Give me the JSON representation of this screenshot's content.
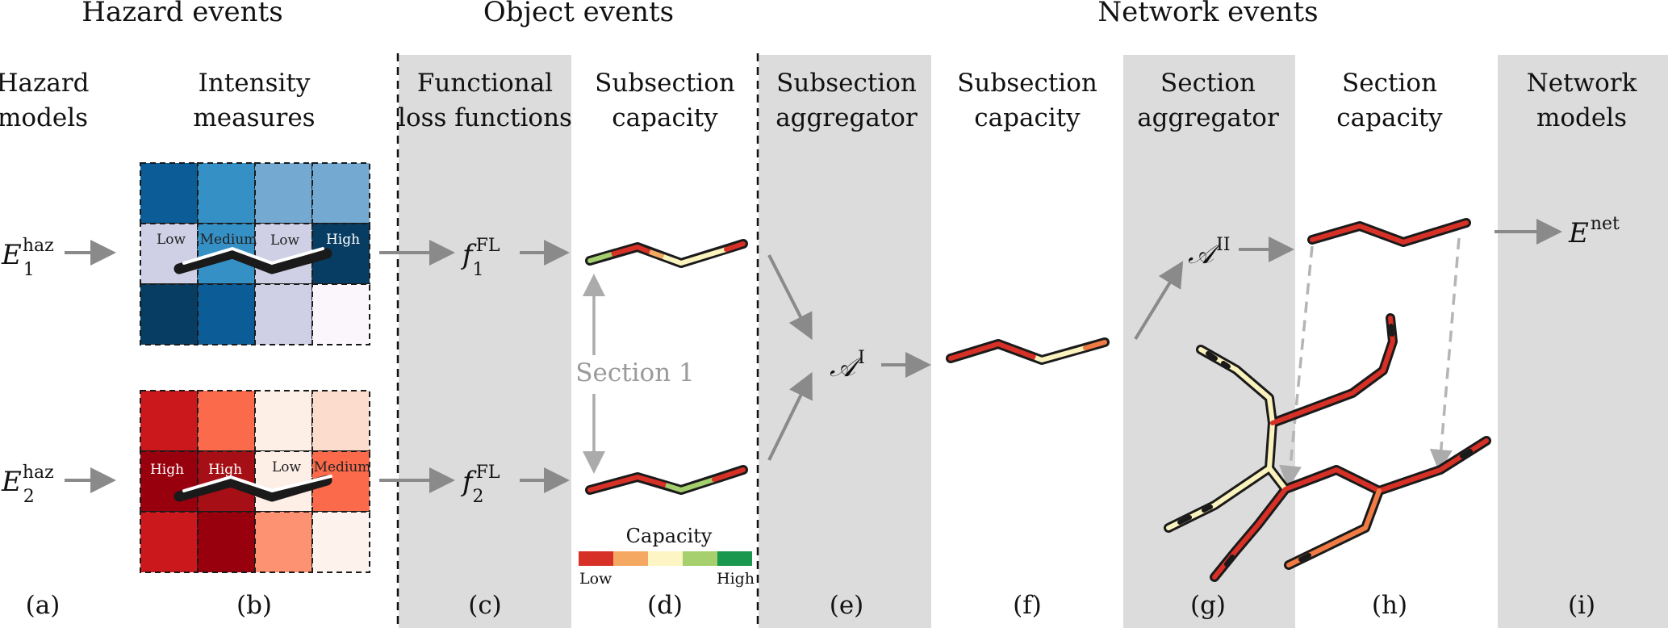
{
  "bands": {
    "hazard": "Hazard events",
    "object": "Object events",
    "network": "Network events"
  },
  "columns": {
    "a": [
      "Hazard",
      "models"
    ],
    "b": [
      "Intensity",
      "measures"
    ],
    "c": [
      "Functional",
      "loss functions"
    ],
    "d": [
      "Subsection",
      "capacity"
    ],
    "e": [
      "Subsection",
      "aggregator"
    ],
    "f": [
      "Subsection",
      "capacity"
    ],
    "g": [
      "Section",
      "aggregator"
    ],
    "h": [
      "Section",
      "capacity"
    ],
    "i": [
      "Network",
      "models"
    ]
  },
  "panels": [
    "(a)",
    "(b)",
    "(c)",
    "(d)",
    "(e)",
    "(f)",
    "(g)",
    "(h)",
    "(i)"
  ],
  "math": {
    "E": "E",
    "haz": "haz",
    "sub1": "1",
    "sub2": "2",
    "f": "f",
    "FL": "FL",
    "A": "𝒜",
    "I": "I",
    "II": "II",
    "net": "net"
  },
  "grid1_labels": [
    "Low",
    "Medium",
    "Low",
    "High"
  ],
  "grid2_labels": [
    "High",
    "High",
    "Low",
    "Medium"
  ],
  "section_label": "Section 1",
  "capacity_legend": {
    "title": "Capacity",
    "low": "Low",
    "high": "High",
    "colors": [
      "#d73027",
      "#f4a862",
      "#fdf5c3",
      "#a6cf6d",
      "#1a9850"
    ]
  },
  "colors": {
    "shade": "#dcdcdc",
    "arrow": "#888888",
    "road_red": "#d73027",
    "road_orange": "#f07b45",
    "road_yellow": "#fbf3be",
    "road_green": "#a3cf6e",
    "outline": "#1a1a1a"
  },
  "grid1_colors": [
    "#0b5c97",
    "#3590c6",
    "#74a9d1",
    "#74a9d1",
    "#cfcfe6",
    "#3590c6",
    "#cfcfe6",
    "#083d63",
    "#083d63",
    "#0b5c97",
    "#cfcfe6",
    "#fbf6fb"
  ],
  "grid2_colors": [
    "#cb181d",
    "#fb6a4a",
    "#fdeee6",
    "#fcdccc",
    "#99000d",
    "#a50f15",
    "#fdeee6",
    "#fb6a4a",
    "#cb181d",
    "#99000d",
    "#fc9272",
    "#fdf2ec"
  ]
}
